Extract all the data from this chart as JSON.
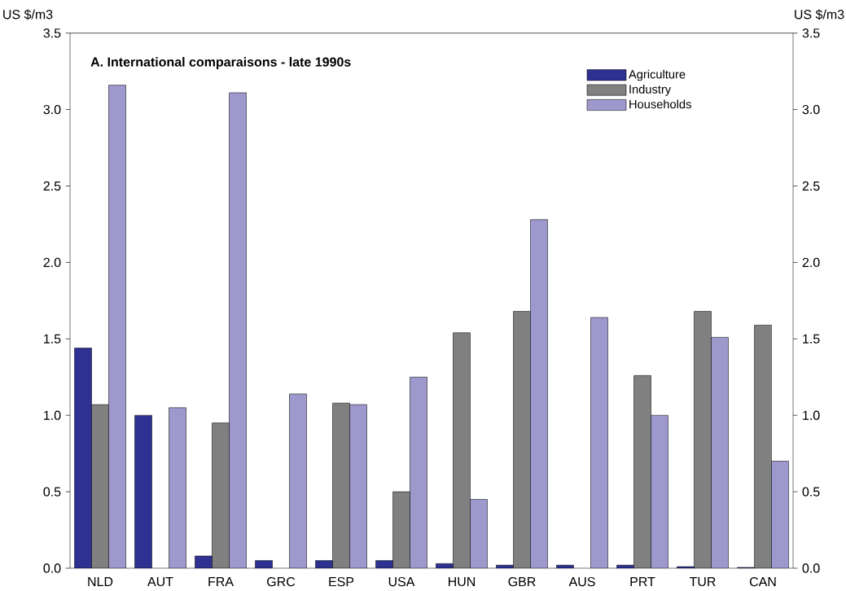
{
  "chart_data": {
    "type": "bar",
    "title": "A. International comparaisons - late 1990s",
    "ylabel": "US $/m3",
    "y2label": "US $/m3",
    "categories": [
      "NLD",
      "AUT",
      "FRA",
      "GRC",
      "ESP",
      "USA",
      "HUN",
      "GBR",
      "AUS",
      "PRT",
      "TUR",
      "CAN"
    ],
    "series": [
      {
        "name": "Agriculture",
        "color": "#2e3192",
        "values": [
          1.44,
          1.0,
          0.08,
          0.05,
          0.05,
          0.05,
          0.03,
          0.02,
          0.02,
          0.02,
          0.01,
          0.005
        ]
      },
      {
        "name": "Industry",
        "color": "#808080",
        "values": [
          1.07,
          null,
          0.95,
          null,
          1.08,
          0.5,
          1.54,
          1.68,
          null,
          1.26,
          1.68,
          1.59
        ]
      },
      {
        "name": "Households",
        "color": "#9e99cc",
        "values": [
          3.16,
          1.05,
          3.11,
          1.14,
          1.07,
          1.25,
          0.45,
          2.28,
          1.64,
          1.0,
          1.51,
          0.7
        ]
      }
    ],
    "ylim": [
      0,
      3.5
    ],
    "yticks": [
      {
        "value": 0,
        "label": "0.0"
      },
      {
        "value": 0.5,
        "label": "0.5"
      },
      {
        "value": 1,
        "label": "1.0"
      },
      {
        "value": 1.5,
        "label": "1.5"
      },
      {
        "value": 2,
        "label": "2.0"
      },
      {
        "value": 2.5,
        "label": "2.5"
      },
      {
        "value": 3,
        "label": "3.0"
      },
      {
        "value": 3.5,
        "label": "3.5"
      }
    ],
    "y2lim": [
      0,
      3.5
    ],
    "y2ticks": [
      {
        "value": 0,
        "label": "0.0"
      },
      {
        "value": 0.5,
        "label": "0.5"
      },
      {
        "value": 1,
        "label": "1.0"
      },
      {
        "value": 1.5,
        "label": "1.5"
      },
      {
        "value": 2,
        "label": "2.0"
      },
      {
        "value": 2.5,
        "label": "2.5"
      },
      {
        "value": 3,
        "label": "3.0"
      },
      {
        "value": 3.5,
        "label": "3.5"
      }
    ],
    "grid": false,
    "legend": "top right"
  }
}
